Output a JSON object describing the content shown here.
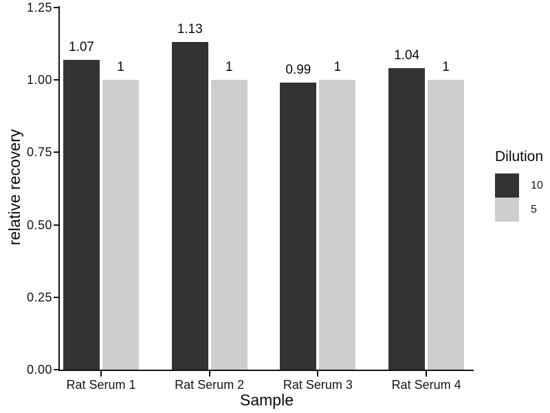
{
  "chart_data": {
    "type": "bar",
    "title": "",
    "xlabel": "Sample",
    "ylabel": "relative recovery",
    "categories": [
      "Rat Serum 1",
      "Rat Serum 2",
      "Rat Serum 3",
      "Rat Serum 4"
    ],
    "series": [
      {
        "name": "10",
        "color": "#333333",
        "values": [
          1.07,
          1.13,
          0.99,
          1.04
        ],
        "labels": [
          "1.07",
          "1.13",
          "0.99",
          "1.04"
        ]
      },
      {
        "name": "5",
        "color": "#cecece",
        "values": [
          1,
          1,
          1,
          1
        ],
        "labels": [
          "1",
          "1",
          "1",
          "1"
        ]
      }
    ],
    "legend": {
      "title": "Dilution",
      "position": "right"
    },
    "y_axis": {
      "min": 0,
      "max": 1.25,
      "ticks": [
        0,
        0.25,
        0.5,
        0.75,
        1,
        1.25
      ],
      "tick_labels": [
        "0.00",
        "0.25",
        "0.50",
        "0.75",
        "1.00",
        "1.25"
      ]
    },
    "grid": false,
    "background": "#ffffff",
    "axis_color": "#141414"
  }
}
